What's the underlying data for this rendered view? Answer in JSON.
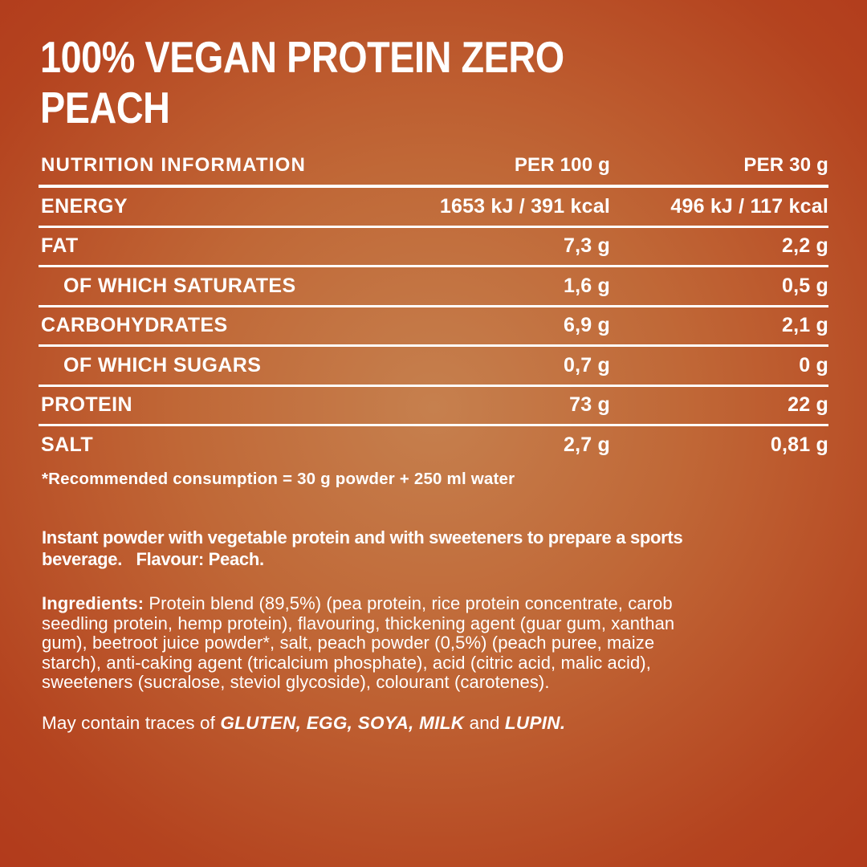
{
  "title": "100% VEGAN PROTEIN ZERO\nPEACH",
  "colors": {
    "background_center": "#c6804e",
    "background_edge": "#b1391b",
    "text": "#ffffff",
    "rule_lines": "#ffffff"
  },
  "table": {
    "header": {
      "label": "NUTRITION INFORMATION",
      "col1": "PER 100 g",
      "col2": "PER 30 g"
    },
    "rows": [
      {
        "label": "ENERGY",
        "indent": false,
        "per100": "1653 kJ / 391 kcal",
        "per30": "496 kJ / 117 kcal"
      },
      {
        "label": "FAT",
        "indent": false,
        "per100": "7,3 g",
        "per30": "2,2 g"
      },
      {
        "label": "OF WHICH SATURATES",
        "indent": true,
        "per100": "1,6 g",
        "per30": "0,5 g"
      },
      {
        "label": "CARBOHYDRATES",
        "indent": false,
        "per100": "6,9 g",
        "per30": "2,1 g"
      },
      {
        "label": "OF WHICH SUGARS",
        "indent": true,
        "per100": "0,7 g",
        "per30": "0 g"
      },
      {
        "label": "PROTEIN",
        "indent": false,
        "per100": "73 g",
        "per30": "22 g"
      },
      {
        "label": "SALT",
        "indent": false,
        "per100": "2,7 g",
        "per30": "0,81 g"
      }
    ],
    "footnote": "*Recommended consumption = 30 g powder + 250 ml water"
  },
  "description": {
    "text": "Instant powder with vegetable protein and with sweeteners to prepare a sports\nbeverage.   Flavour: Peach."
  },
  "ingredients": {
    "label": "Ingredients:",
    "text": " Protein blend (89,5%) (pea protein, rice protein concentrate, carob\nseedling protein, hemp protein), flavouring, thickening agent (guar gum, xanthan\ngum), beetroot juice powder*, salt, peach powder (0,5%) (peach puree, maize\nstarch), anti-caking agent (tricalcium phosphate), acid (citric acid, malic acid),\nsweeteners (sucralose, steviol glycoside), colourant (carotenes)."
  },
  "allergens": {
    "prefix": "May contain traces of ",
    "items_bold": "GLUTEN, EGG, SOYA, MILK",
    "conjunction": " and ",
    "last_item": "LUPIN."
  }
}
